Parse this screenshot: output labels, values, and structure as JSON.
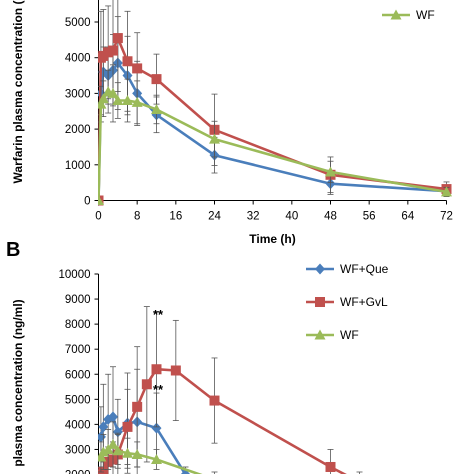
{
  "chart_data": [
    {
      "panel": "A",
      "type": "line",
      "xlabel": "Time (h)",
      "ylabel": "Warfarin plasma concentration (",
      "xlim": [
        0,
        72
      ],
      "ylim": [
        0,
        5000
      ],
      "xticks": [
        0,
        8,
        16,
        24,
        32,
        40,
        48,
        56,
        64,
        72
      ],
      "yticks": [
        0,
        1000,
        2000,
        3000,
        4000,
        5000
      ],
      "legend": {
        "placement": "top-right",
        "entries": [
          "WF"
        ]
      },
      "series": [
        {
          "name": "WF+Que",
          "color": "#4a7ebb",
          "marker": "diamond",
          "x": [
            0,
            0.5,
            1,
            2,
            3,
            4,
            6,
            8,
            12,
            24,
            48,
            72
          ],
          "y": [
            0,
            3000,
            3600,
            3500,
            3650,
            3850,
            3500,
            3000,
            2400,
            1270,
            470,
            260
          ],
          "err": [
            0,
            600,
            700,
            800,
            1000,
            1300,
            1100,
            900,
            500,
            500,
            300,
            150
          ]
        },
        {
          "name": "WF+GvL",
          "color": "#c0504d",
          "marker": "square",
          "x": [
            0,
            0.5,
            1,
            2,
            3,
            4,
            6,
            8,
            12,
            24,
            48,
            72
          ],
          "y": [
            0,
            4000,
            4050,
            4150,
            4200,
            4550,
            3900,
            3700,
            3400,
            1980,
            720,
            320
          ],
          "err": [
            0,
            1300,
            1300,
            1300,
            1500,
            1500,
            1400,
            1000,
            700,
            1000,
            500,
            200
          ]
        },
        {
          "name": "WF",
          "color": "#9bbb59",
          "marker": "triangle",
          "x": [
            0,
            0.5,
            1,
            2,
            3,
            4,
            6,
            8,
            12,
            24,
            48,
            72
          ],
          "y": [
            0,
            2700,
            2850,
            3050,
            3000,
            2800,
            2800,
            2750,
            2550,
            1720,
            800,
            240
          ],
          "err": [
            0,
            500,
            500,
            600,
            800,
            500,
            600,
            600,
            400,
            500,
            300,
            120
          ]
        }
      ]
    },
    {
      "panel": "B",
      "type": "line",
      "xlabel": "",
      "ylabel": "plasma concentration (ng/ml)",
      "xlim": [
        0,
        72
      ],
      "ylim": [
        2000,
        10000
      ],
      "yticks": [
        2000,
        3000,
        4000,
        5000,
        6000,
        7000,
        8000,
        9000,
        10000
      ],
      "legend": {
        "placement": "top-right",
        "entries": [
          "WF+Que",
          "WF+GvL",
          "WF"
        ]
      },
      "annotations": [
        "**",
        "**"
      ],
      "series": [
        {
          "name": "WF+Que",
          "color": "#4a7ebb",
          "marker": "diamond",
          "x": [
            0.5,
            1,
            2,
            3,
            4,
            6,
            8,
            12,
            18
          ],
          "y": [
            3500,
            3900,
            4200,
            4300,
            3700,
            4050,
            4100,
            3850,
            2000
          ],
          "err": [
            1200,
            1700,
            1800,
            2000,
            1300,
            2000,
            2100,
            1400,
            300
          ]
        },
        {
          "name": "WF+GvL",
          "color": "#c0504d",
          "marker": "square",
          "x": [
            0.5,
            1,
            2,
            3,
            4,
            6,
            8,
            10,
            12,
            16,
            24,
            48,
            54
          ],
          "y": [
            2000,
            2100,
            2500,
            2600,
            2800,
            3900,
            4700,
            5600,
            6200,
            6150,
            4950,
            2300,
            1700
          ],
          "err": [
            300,
            400,
            600,
            700,
            800,
            1500,
            2400,
            3100,
            2300,
            2000,
            1700,
            700,
            400
          ]
        },
        {
          "name": "WF",
          "color": "#9bbb59",
          "marker": "triangle",
          "x": [
            0.5,
            1,
            2,
            3,
            4,
            6,
            8,
            12,
            24
          ],
          "y": [
            2700,
            2900,
            3000,
            3200,
            2950,
            2850,
            2800,
            2600,
            1800
          ],
          "err": [
            600,
            700,
            800,
            900,
            700,
            600,
            500,
            400,
            300
          ]
        }
      ]
    }
  ]
}
